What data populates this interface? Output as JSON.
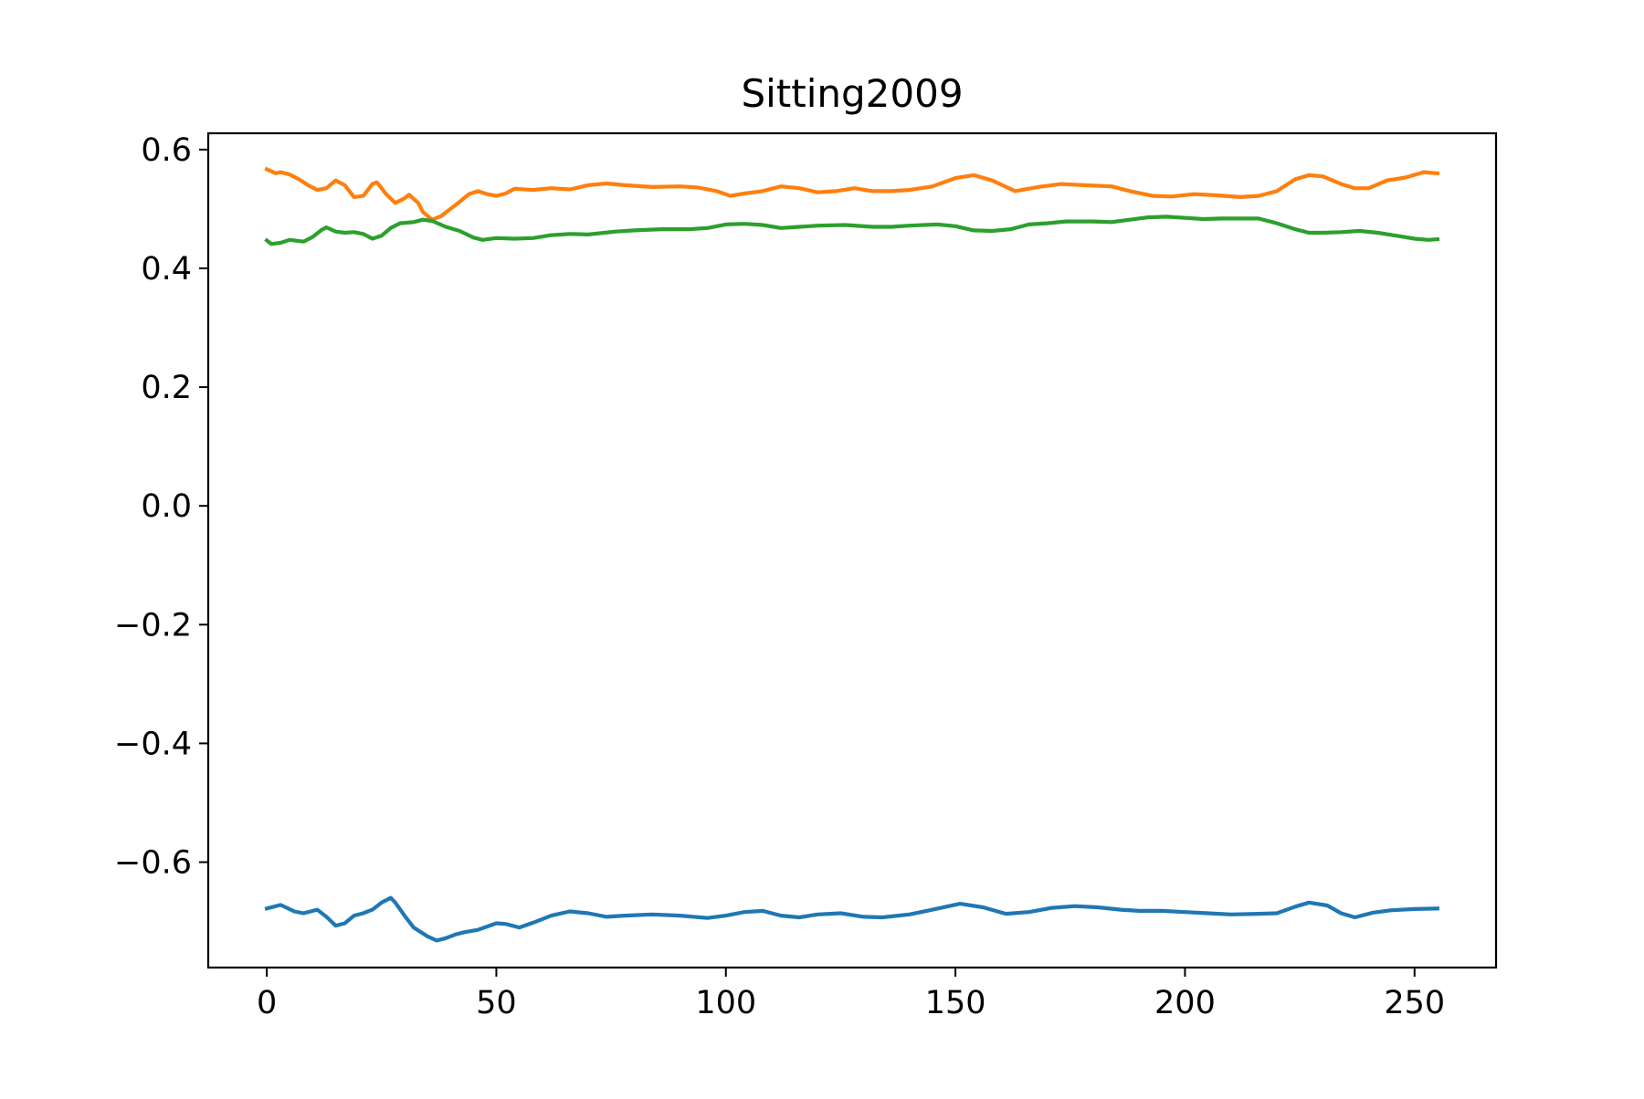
{
  "chart_data": {
    "type": "line",
    "title": "Sitting2009",
    "xlabel": "",
    "ylabel": "",
    "xlim": [
      -12.75,
      267.75
    ],
    "ylim": [
      -0.7775,
      0.6275
    ],
    "xticks": [
      0,
      50,
      100,
      150,
      200,
      250
    ],
    "xtick_labels": [
      "0",
      "50",
      "100",
      "150",
      "200",
      "250"
    ],
    "yticks": [
      0.6,
      0.4,
      0.2,
      0.0,
      -0.2,
      -0.4,
      -0.6
    ],
    "ytick_labels": [
      "0.6",
      "0.4",
      "0.2",
      "0.0",
      "−0.2",
      "−0.4",
      "−0.6"
    ],
    "grid": false,
    "legend": "none",
    "x_range": [
      0,
      255
    ],
    "series": [
      {
        "color": "#1f77b4",
        "points": [
          [
            0,
            -0.678
          ],
          [
            3,
            -0.672
          ],
          [
            6,
            -0.683
          ],
          [
            8,
            -0.686
          ],
          [
            11,
            -0.68
          ],
          [
            13,
            -0.692
          ],
          [
            15,
            -0.707
          ],
          [
            17,
            -0.703
          ],
          [
            19,
            -0.69
          ],
          [
            21,
            -0.686
          ],
          [
            23,
            -0.68
          ],
          [
            25,
            -0.668
          ],
          [
            27,
            -0.66
          ],
          [
            28,
            -0.668
          ],
          [
            30,
            -0.69
          ],
          [
            32,
            -0.71
          ],
          [
            35,
            -0.725
          ],
          [
            37,
            -0.732
          ],
          [
            39,
            -0.728
          ],
          [
            41,
            -0.722
          ],
          [
            43,
            -0.718
          ],
          [
            46,
            -0.714
          ],
          [
            50,
            -0.703
          ],
          [
            52,
            -0.704
          ],
          [
            55,
            -0.71
          ],
          [
            58,
            -0.702
          ],
          [
            62,
            -0.69
          ],
          [
            66,
            -0.683
          ],
          [
            70,
            -0.686
          ],
          [
            74,
            -0.692
          ],
          [
            78,
            -0.69
          ],
          [
            84,
            -0.688
          ],
          [
            90,
            -0.69
          ],
          [
            96,
            -0.694
          ],
          [
            100,
            -0.69
          ],
          [
            104,
            -0.684
          ],
          [
            108,
            -0.682
          ],
          [
            112,
            -0.69
          ],
          [
            116,
            -0.693
          ],
          [
            120,
            -0.688
          ],
          [
            125,
            -0.686
          ],
          [
            130,
            -0.692
          ],
          [
            134,
            -0.693
          ],
          [
            140,
            -0.688
          ],
          [
            145,
            -0.68
          ],
          [
            151,
            -0.67
          ],
          [
            156,
            -0.676
          ],
          [
            161,
            -0.687
          ],
          [
            166,
            -0.684
          ],
          [
            171,
            -0.677
          ],
          [
            176,
            -0.674
          ],
          [
            181,
            -0.676
          ],
          [
            186,
            -0.68
          ],
          [
            190,
            -0.682
          ],
          [
            195,
            -0.682
          ],
          [
            200,
            -0.684
          ],
          [
            205,
            -0.686
          ],
          [
            210,
            -0.688
          ],
          [
            216,
            -0.687
          ],
          [
            220,
            -0.686
          ],
          [
            224,
            -0.675
          ],
          [
            227,
            -0.668
          ],
          [
            231,
            -0.673
          ],
          [
            234,
            -0.686
          ],
          [
            237,
            -0.693
          ],
          [
            241,
            -0.685
          ],
          [
            245,
            -0.681
          ],
          [
            250,
            -0.679
          ],
          [
            255,
            -0.678
          ]
        ]
      },
      {
        "color": "#ff7f0e",
        "points": [
          [
            0,
            0.567
          ],
          [
            2,
            0.56
          ],
          [
            3,
            0.562
          ],
          [
            5,
            0.558
          ],
          [
            7,
            0.55
          ],
          [
            9,
            0.54
          ],
          [
            11,
            0.532
          ],
          [
            13,
            0.535
          ],
          [
            15,
            0.548
          ],
          [
            17,
            0.54
          ],
          [
            19,
            0.52
          ],
          [
            21,
            0.522
          ],
          [
            23,
            0.542
          ],
          [
            24,
            0.545
          ],
          [
            26,
            0.525
          ],
          [
            28,
            0.51
          ],
          [
            30,
            0.518
          ],
          [
            31,
            0.524
          ],
          [
            33,
            0.51
          ],
          [
            34,
            0.495
          ],
          [
            36,
            0.482
          ],
          [
            38,
            0.488
          ],
          [
            40,
            0.5
          ],
          [
            42,
            0.512
          ],
          [
            44,
            0.525
          ],
          [
            46,
            0.53
          ],
          [
            48,
            0.525
          ],
          [
            50,
            0.522
          ],
          [
            52,
            0.526
          ],
          [
            54,
            0.534
          ],
          [
            58,
            0.532
          ],
          [
            62,
            0.535
          ],
          [
            66,
            0.533
          ],
          [
            70,
            0.54
          ],
          [
            74,
            0.543
          ],
          [
            78,
            0.54
          ],
          [
            84,
            0.537
          ],
          [
            90,
            0.538
          ],
          [
            94,
            0.536
          ],
          [
            98,
            0.53
          ],
          [
            101,
            0.522
          ],
          [
            104,
            0.526
          ],
          [
            108,
            0.53
          ],
          [
            112,
            0.538
          ],
          [
            116,
            0.535
          ],
          [
            120,
            0.528
          ],
          [
            124,
            0.53
          ],
          [
            128,
            0.535
          ],
          [
            132,
            0.53
          ],
          [
            136,
            0.53
          ],
          [
            140,
            0.532
          ],
          [
            145,
            0.538
          ],
          [
            150,
            0.552
          ],
          [
            154,
            0.557
          ],
          [
            158,
            0.548
          ],
          [
            163,
            0.53
          ],
          [
            168,
            0.537
          ],
          [
            173,
            0.542
          ],
          [
            178,
            0.54
          ],
          [
            184,
            0.538
          ],
          [
            188,
            0.53
          ],
          [
            193,
            0.522
          ],
          [
            197,
            0.521
          ],
          [
            202,
            0.525
          ],
          [
            207,
            0.523
          ],
          [
            212,
            0.52
          ],
          [
            216,
            0.522
          ],
          [
            220,
            0.53
          ],
          [
            224,
            0.55
          ],
          [
            227,
            0.557
          ],
          [
            230,
            0.555
          ],
          [
            234,
            0.542
          ],
          [
            237,
            0.535
          ],
          [
            240,
            0.535
          ],
          [
            244,
            0.548
          ],
          [
            248,
            0.553
          ],
          [
            252,
            0.562
          ],
          [
            255,
            0.56
          ]
        ]
      },
      {
        "color": "#2ca02c",
        "points": [
          [
            0,
            0.447
          ],
          [
            1,
            0.441
          ],
          [
            3,
            0.443
          ],
          [
            5,
            0.448
          ],
          [
            8,
            0.445
          ],
          [
            10,
            0.453
          ],
          [
            12,
            0.465
          ],
          [
            13,
            0.469
          ],
          [
            15,
            0.462
          ],
          [
            17,
            0.46
          ],
          [
            19,
            0.461
          ],
          [
            21,
            0.458
          ],
          [
            23,
            0.45
          ],
          [
            25,
            0.455
          ],
          [
            27,
            0.468
          ],
          [
            29,
            0.476
          ],
          [
            32,
            0.478
          ],
          [
            34,
            0.482
          ],
          [
            36,
            0.48
          ],
          [
            39,
            0.47
          ],
          [
            42,
            0.463
          ],
          [
            45,
            0.452
          ],
          [
            47,
            0.448
          ],
          [
            50,
            0.451
          ],
          [
            54,
            0.45
          ],
          [
            58,
            0.451
          ],
          [
            62,
            0.456
          ],
          [
            66,
            0.458
          ],
          [
            70,
            0.457
          ],
          [
            76,
            0.462
          ],
          [
            80,
            0.464
          ],
          [
            86,
            0.466
          ],
          [
            92,
            0.466
          ],
          [
            96,
            0.468
          ],
          [
            100,
            0.474
          ],
          [
            104,
            0.475
          ],
          [
            108,
            0.473
          ],
          [
            112,
            0.468
          ],
          [
            116,
            0.47
          ],
          [
            120,
            0.472
          ],
          [
            126,
            0.473
          ],
          [
            132,
            0.47
          ],
          [
            136,
            0.47
          ],
          [
            140,
            0.472
          ],
          [
            146,
            0.474
          ],
          [
            150,
            0.471
          ],
          [
            154,
            0.464
          ],
          [
            158,
            0.463
          ],
          [
            162,
            0.466
          ],
          [
            166,
            0.474
          ],
          [
            170,
            0.476
          ],
          [
            174,
            0.479
          ],
          [
            180,
            0.479
          ],
          [
            184,
            0.478
          ],
          [
            188,
            0.482
          ],
          [
            192,
            0.486
          ],
          [
            196,
            0.487
          ],
          [
            200,
            0.485
          ],
          [
            204,
            0.483
          ],
          [
            208,
            0.484
          ],
          [
            212,
            0.484
          ],
          [
            216,
            0.484
          ],
          [
            220,
            0.476
          ],
          [
            224,
            0.466
          ],
          [
            227,
            0.46
          ],
          [
            230,
            0.46
          ],
          [
            234,
            0.461
          ],
          [
            238,
            0.463
          ],
          [
            242,
            0.46
          ],
          [
            246,
            0.455
          ],
          [
            250,
            0.45
          ],
          [
            253,
            0.448
          ],
          [
            255,
            0.449
          ]
        ]
      }
    ]
  }
}
